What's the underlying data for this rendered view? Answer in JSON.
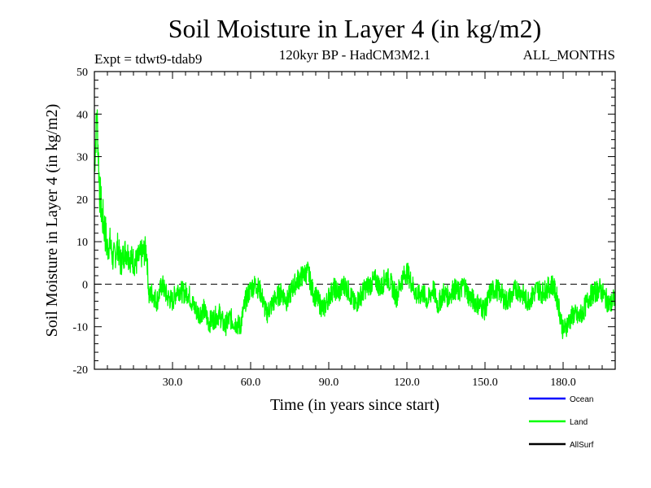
{
  "chart_data": {
    "type": "line",
    "title": "Soil Moisture in Layer 4 (in kg/m2)",
    "subtitle_left": "Expt = tdwt9-tdab9",
    "subtitle_center": "120kyr BP - HadCM3M2.1",
    "subtitle_right": "ALL_MONTHS",
    "xlabel": "Time (in years since start)",
    "ylabel": "Soil Moisture in Layer 4 (in kg/m2)",
    "xlim": [
      0,
      200
    ],
    "ylim": [
      -20,
      50
    ],
    "x_ticks": [
      {
        "value": 30,
        "label": "30.0"
      },
      {
        "value": 60,
        "label": "60.0"
      },
      {
        "value": 90,
        "label": "90.0"
      },
      {
        "value": 120,
        "label": "120.0"
      },
      {
        "value": 150,
        "label": "150.0"
      },
      {
        "value": 180,
        "label": "180.0"
      }
    ],
    "y_ticks": [
      {
        "value": 50,
        "label": "50"
      },
      {
        "value": 40,
        "label": "40"
      },
      {
        "value": 30,
        "label": "30"
      },
      {
        "value": 20,
        "label": "20"
      },
      {
        "value": 10,
        "label": "10"
      },
      {
        "value": 0,
        "label": "0"
      },
      {
        "value": -10,
        "label": "-10"
      },
      {
        "value": -20,
        "label": "-20"
      }
    ],
    "zero_line": 0,
    "legend": [
      {
        "name": "Ocean",
        "color": "#0000ff"
      },
      {
        "name": "Land",
        "color": "#00ff00"
      },
      {
        "name": "AllSurf",
        "color": "#000000"
      }
    ],
    "series": [
      {
        "name": "Land",
        "color": "#00ff00",
        "x": [
          0,
          1,
          2,
          3,
          4,
          5,
          6,
          7,
          8,
          9,
          10,
          12,
          14,
          16,
          18,
          20,
          21,
          22,
          24,
          26,
          28,
          30,
          32,
          34,
          36,
          38,
          40,
          42,
          44,
          46,
          48,
          50,
          52,
          54,
          56,
          58,
          60,
          62,
          64,
          66,
          68,
          70,
          72,
          74,
          76,
          78,
          80,
          82,
          84,
          86,
          88,
          90,
          92,
          94,
          96,
          98,
          100,
          102,
          104,
          106,
          108,
          110,
          112,
          114,
          116,
          118,
          120,
          122,
          124,
          126,
          128,
          130,
          132,
          134,
          136,
          138,
          140,
          142,
          144,
          146,
          148,
          150,
          152,
          154,
          156,
          158,
          160,
          162,
          164,
          166,
          168,
          170,
          172,
          174,
          176,
          178,
          180,
          182,
          184,
          186,
          188,
          190,
          192,
          194,
          196,
          198,
          200
        ],
        "y": [
          28,
          40,
          22,
          16,
          13,
          8,
          10,
          6,
          7,
          9,
          5,
          8,
          6,
          5,
          7,
          8,
          -3,
          -2,
          -4,
          0,
          -3,
          -4,
          -1,
          -2,
          -2,
          -5,
          -7,
          -6,
          -9,
          -8,
          -7,
          -10,
          -8,
          -9,
          -10,
          -4,
          -1,
          0,
          -2,
          -7,
          -5,
          -3,
          -2,
          -4,
          -1,
          1,
          2,
          3,
          -2,
          -4,
          -6,
          -3,
          -1,
          -2,
          0,
          -2,
          -5,
          -3,
          -1,
          0,
          1,
          -1,
          2,
          0,
          -3,
          1,
          3,
          0,
          -3,
          -2,
          -4,
          -1,
          -5,
          -2,
          -3,
          -1,
          -2,
          0,
          -3,
          -4,
          -5,
          -6,
          -2,
          -1,
          -2,
          -4,
          -3,
          -1,
          -2,
          -4,
          -3,
          -1,
          -2,
          -1,
          0,
          -4,
          -11,
          -9,
          -7,
          -8,
          -6,
          -3,
          -2,
          -1,
          -3,
          -5,
          -3
        ]
      }
    ]
  }
}
